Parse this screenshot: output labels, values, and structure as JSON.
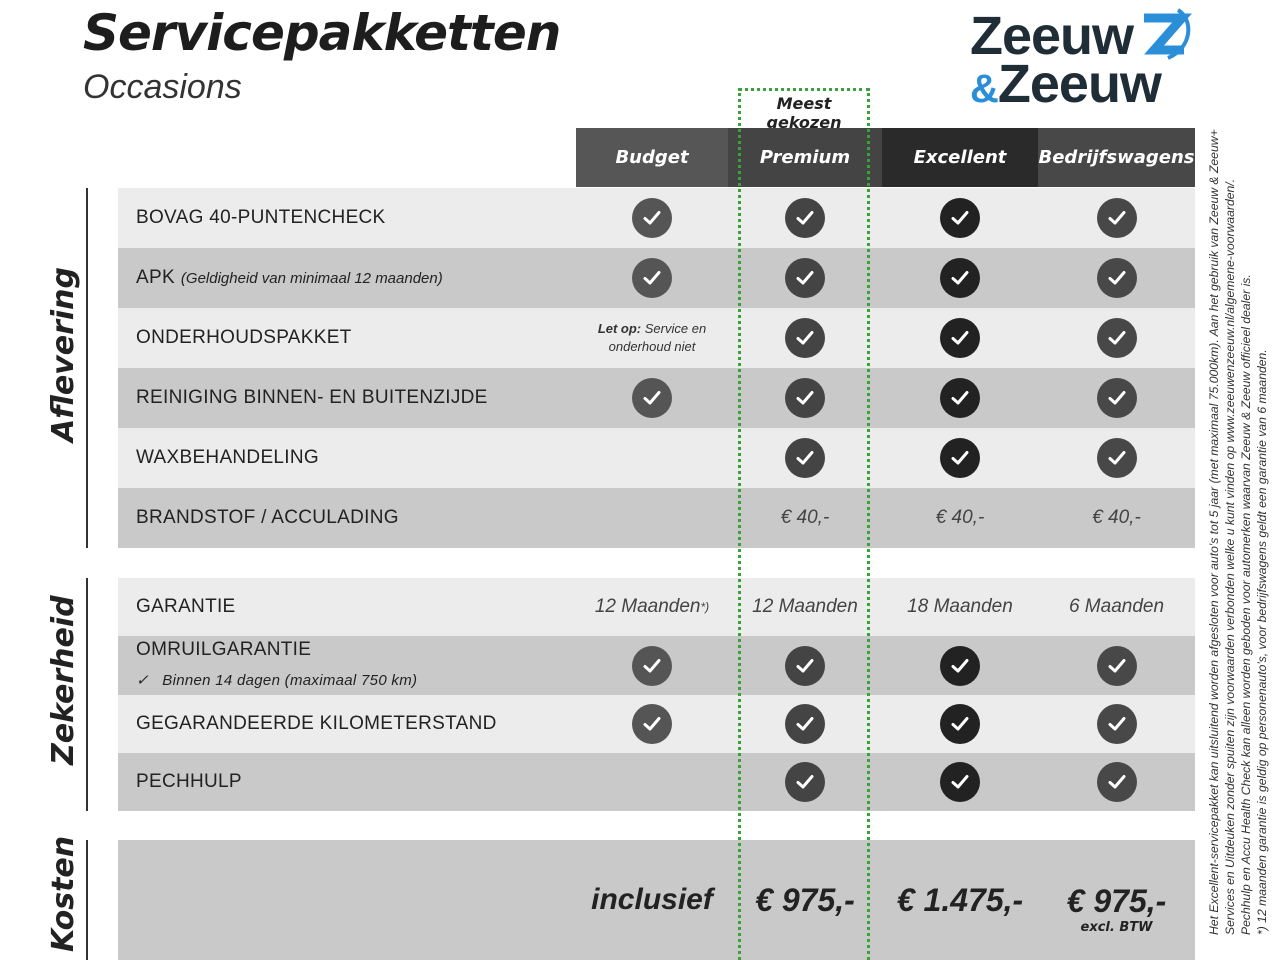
{
  "header": {
    "title": "Servicepakketten",
    "subtitle": "Occasions"
  },
  "logo": {
    "line1": "Zeeuw",
    "amp": "&",
    "line2": "Zeeuw",
    "colors": {
      "dark": "#1f2d36",
      "blue": "#2a8fd8"
    }
  },
  "highlight": {
    "label": "Meest gekozen",
    "color": "#3aa23a"
  },
  "columns": [
    "Budget",
    "Premium",
    "Excellent",
    "Bedrijfswagens"
  ],
  "sections": {
    "aflevering": "Aflevering",
    "zekerheid": "Zekerheid",
    "kosten": "Kosten"
  },
  "rows": [
    {
      "label": "BOVAG 40-PUNTENCHECK",
      "cells": [
        "check",
        "check",
        "check",
        "check"
      ]
    },
    {
      "label": "APK",
      "sub": "(Geldigheid van minimaal 12 maanden)",
      "cells": [
        "check",
        "check",
        "check",
        "check"
      ]
    },
    {
      "label": "ONDERHOUDSPAKKET",
      "note_bold": "Let op:",
      "note": " Service en onderhoud niet",
      "cells": [
        "note",
        "check",
        "check",
        "check"
      ]
    },
    {
      "label": "REINIGING BINNEN- EN BUITENZIJDE",
      "cells": [
        "check",
        "check",
        "check",
        "check"
      ]
    },
    {
      "label": "WAXBEHANDELING",
      "cells": [
        "",
        "check",
        "check",
        "check"
      ]
    },
    {
      "label": "BRANDSTOF / ACCULADING",
      "cells": [
        "",
        "€ 40,-",
        "€ 40,-",
        "€ 40,-"
      ]
    },
    {
      "label": "GARANTIE",
      "cells": [
        "12 Maanden",
        "12 Maanden",
        "18 Maanden",
        "6 Maanden"
      ],
      "footnote": "*)"
    },
    {
      "label": "OMRUILGARANTIE",
      "sub": "Binnen 14 dagen (maximaal 750 km)",
      "cells": [
        "check",
        "check",
        "check",
        "check"
      ]
    },
    {
      "label": "GEGARANDEERDE KILOMETERSTAND",
      "cells": [
        "check",
        "check",
        "check",
        "check"
      ]
    },
    {
      "label": "PECHHULP",
      "cells": [
        "",
        "check",
        "check",
        "check"
      ]
    }
  ],
  "kosten": {
    "cells": [
      "inclusief",
      "€ 975,-",
      "€ 1.475,-",
      "€ 975,-"
    ],
    "excl": "excl. BTW"
  },
  "footnotes": [
    "Het Excellent-servicepakket kan uitsluitend worden afgesloten voor auto's tot 5 jaar (met maximaal 75.000km). Aan het gebruik van Zeeuw & Zeeuw+",
    "Services en Uitdeuken zonder spuiten zijn voorwaarden verbonden welke u kunt vinden op www.zeeuwenzeeuw.nl/algemene-voorwaarden/.",
    "Pechhulp en Accu Health Check kan alleen worden geboden voor automerken waarvan Zeeuw & Zeeuw officieel dealer is.",
    "*) 12 maanden garantie is geldig op personenauto's, voor bedrijfswagens geldt een garantie van 6 maanden."
  ]
}
